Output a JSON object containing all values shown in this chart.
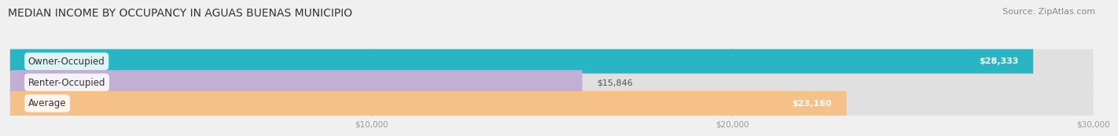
{
  "title": "MEDIAN INCOME BY OCCUPANCY IN AGUAS BUENAS MUNICIPIO",
  "source": "Source: ZipAtlas.com",
  "categories": [
    "Owner-Occupied",
    "Renter-Occupied",
    "Average"
  ],
  "values": [
    28333,
    15846,
    23160
  ],
  "bar_colors": [
    "#29b5c3",
    "#c3aed6",
    "#f5c189"
  ],
  "bar_labels": [
    "$28,333",
    "$15,846",
    "$23,160"
  ],
  "xlim": [
    0,
    30000
  ],
  "xticks": [
    10000,
    20000,
    30000
  ],
  "xticklabels": [
    "$10,000",
    "$20,000",
    "$30,000"
  ],
  "title_fontsize": 10,
  "source_fontsize": 8,
  "bar_height": 0.58,
  "background_color": "#f0f0f0",
  "bar_background_color": "#e0e0e0",
  "title_color": "#333333",
  "source_color": "#888888",
  "tick_color": "#999999",
  "label_fontsize": 8,
  "ylabel_fontsize": 8.5
}
